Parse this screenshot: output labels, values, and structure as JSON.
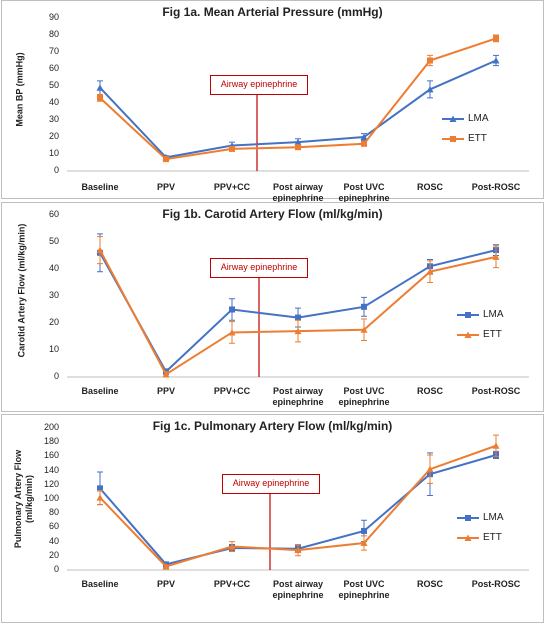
{
  "chart_data": [
    {
      "type": "line",
      "title": "Fig 1a. Mean Arterial Pressure (mmHg)",
      "y_label": "Mean BP (mmHg)",
      "categories": [
        "Baseline",
        "PPV",
        "PPV+CC",
        "Post airway epinephrine",
        "Post UVC epinephrine",
        "ROSC",
        "Post-ROSC"
      ],
      "series": [
        {
          "name": "LMA",
          "color": "#4472c4",
          "marker": "triangle",
          "values": [
            49,
            8,
            15,
            17,
            20,
            48,
            65
          ],
          "errors": [
            4,
            1,
            2,
            2,
            2,
            5,
            3
          ]
        },
        {
          "name": "ETT",
          "color": "#ed7d31",
          "marker": "square",
          "values": [
            43,
            7,
            13,
            14,
            16,
            65,
            78
          ],
          "errors": [
            2,
            1,
            1,
            1,
            1,
            3,
            2
          ]
        }
      ],
      "ylim": [
        0,
        90
      ],
      "yticks": [
        0,
        10,
        20,
        30,
        40,
        50,
        60,
        70,
        80,
        90
      ],
      "grid": false,
      "annotation": "Airway epinephrine"
    },
    {
      "type": "line",
      "title": "Fig 1b. Carotid Artery Flow (ml/kg/min)",
      "y_label": "Carotid Artery Flow (ml/kg/min)",
      "categories": [
        "Baseline",
        "PPV",
        "PPV+CC",
        "Post airway epinephrine",
        "Post UVC epinephrine",
        "ROSC",
        "Post-ROSC"
      ],
      "series": [
        {
          "name": "LMA",
          "color": "#4472c4",
          "marker": "square",
          "values": [
            46,
            2,
            25,
            22,
            26,
            41,
            47
          ],
          "errors": [
            7,
            1,
            4,
            3.5,
            3.5,
            2.5,
            2
          ]
        },
        {
          "name": "ETT",
          "color": "#ed7d31",
          "marker": "triangle",
          "values": [
            47,
            1,
            16.5,
            17,
            17.5,
            39,
            44.5
          ],
          "errors": [
            5,
            1,
            4,
            4,
            4,
            4,
            4
          ]
        }
      ],
      "ylim": [
        0,
        60
      ],
      "yticks": [
        0,
        10,
        20,
        30,
        40,
        50,
        60
      ],
      "grid": false,
      "annotation": "Airway epinephrine"
    },
    {
      "type": "line",
      "title": "Fig 1c. Pulmonary Artery Flow (ml/kg/min)",
      "y_label": "Pulmonary Artery Flow (ml/kg/min)",
      "categories": [
        "Baseline",
        "PPV",
        "PPV+CC",
        "Post airway epinephrine",
        "Post UVC epinephrine",
        "ROSC",
        "Post-ROSC"
      ],
      "series": [
        {
          "name": "LMA",
          "color": "#4472c4",
          "marker": "square",
          "values": [
            115,
            8,
            31,
            30,
            55,
            135,
            162
          ],
          "errors": [
            23,
            3,
            5,
            5,
            15,
            30,
            5
          ]
        },
        {
          "name": "ETT",
          "color": "#ed7d31",
          "marker": "triangle",
          "values": [
            102,
            5,
            33,
            28,
            38,
            142,
            175
          ],
          "errors": [
            10,
            2,
            7,
            8,
            10,
            20,
            15
          ]
        }
      ],
      "ylim": [
        0,
        200
      ],
      "yticks": [
        0,
        20,
        40,
        60,
        80,
        100,
        120,
        140,
        160,
        180,
        200
      ],
      "grid": false,
      "annotation": "Airway epinephrine"
    }
  ]
}
